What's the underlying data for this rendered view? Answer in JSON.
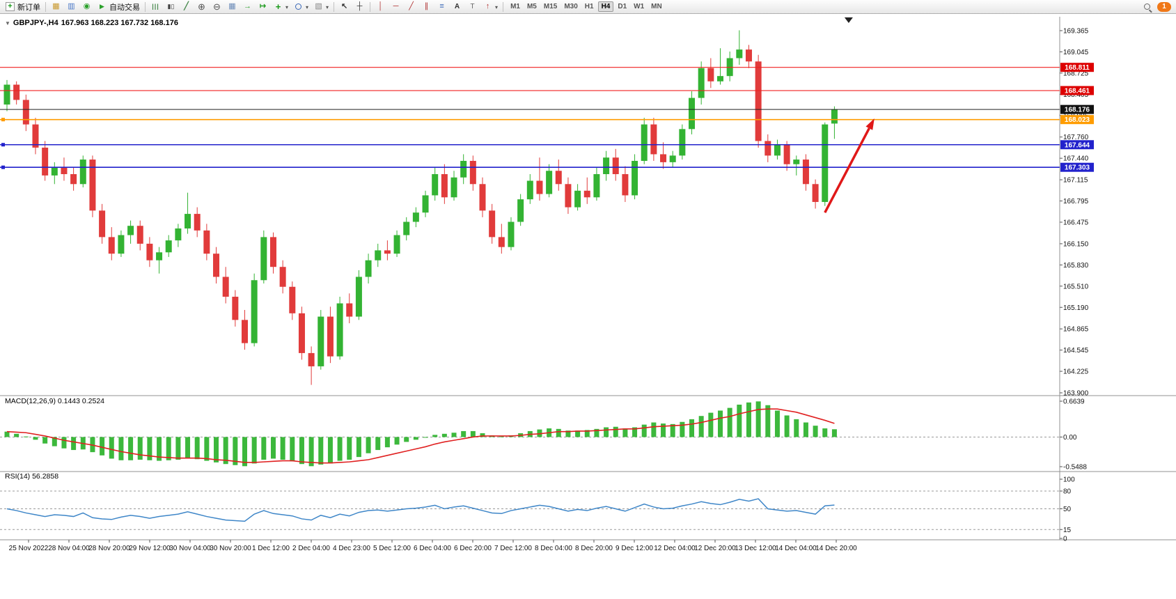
{
  "toolbar": {
    "new_order_label": "新订单",
    "auto_trading_label": "自动交易",
    "timeframes": [
      "M1",
      "M5",
      "M15",
      "M30",
      "H1",
      "H4",
      "D1",
      "W1",
      "MN"
    ],
    "active_timeframe": "H4",
    "notification_count": "1",
    "icons": {
      "new-order-icon": "document-plus",
      "charts-icon": "grid-gold",
      "market-watch-icon": "panel-blue",
      "navigator-icon": "circle-green",
      "auto-trading-icon": "play-green",
      "bar-chart-type-icon": "ohlc-bars",
      "candlestick-type-icon": "candles",
      "line-chart-type-icon": "diagonal-line",
      "zoom-in-icon": "circled-plus",
      "zoom-out-icon": "circled-minus",
      "tile-windows-icon": "grid",
      "auto-scroll-icon": "arrow-right-green",
      "chart-shift-icon": "arrow-bar-green",
      "indicators-icon": "plus-green",
      "periods-icon": "clock-blue",
      "templates-icon": "hatched-square",
      "cursor-icon": "arrow-up-left",
      "crosshair-icon": "cross",
      "vertical-line-icon": "vertical-bar-red",
      "horizontal-line-icon": "horizontal-bar-red",
      "trendline-icon": "diagonal-red",
      "channel-icon": "parallel-red",
      "fibonacci-icon": "triple-bar-blue",
      "text-icon": "letter-A",
      "text-label-icon": "letter-T",
      "arrows-icon": "arrow-up-red",
      "search-icon": "magnifier",
      "notification-badge": "orange-circle"
    }
  },
  "chart_data": [
    {
      "type": "candlestick",
      "symbol_period": "GBPJPY-,H4",
      "ohlc_text": "167.963 168.223 167.732 168.176",
      "last_candle": {
        "open": 167.963,
        "high": 168.223,
        "low": 167.732,
        "close": 168.176
      },
      "up_color": "#33b333",
      "down_color": "#e13b3b",
      "ylim": [
        163.9,
        169.365
      ],
      "y_tick_labels": [
        "169.365",
        "169.045",
        "168.725",
        "168.405",
        "168.085",
        "167.760",
        "167.440",
        "167.115",
        "166.795",
        "166.475",
        "166.150",
        "165.830",
        "165.510",
        "165.190",
        "164.865",
        "164.545",
        "164.225",
        "163.900"
      ],
      "x_labels": [
        "25 Nov 2022",
        "28 Nov 04:00",
        "28 Nov 20:00",
        "29 Nov 12:00",
        "30 Nov 04:00",
        "30 Nov 20:00",
        "1 Dec 12:00",
        "2 Dec 04:00",
        "4 Dec 23:00",
        "5 Dec 12:00",
        "6 Dec 04:00",
        "6 Dec 20:00",
        "7 Dec 12:00",
        "8 Dec 04:00",
        "8 Dec 20:00",
        "9 Dec 12:00",
        "12 Dec 04:00",
        "12 Dec 20:00",
        "13 Dec 12:00",
        "14 Dec 04:00",
        "14 Dec 20:00"
      ],
      "hlines": [
        {
          "price": 168.811,
          "label": "168.811",
          "color": "#f02020",
          "box": "#dd0000",
          "width": 1.1,
          "handle": false
        },
        {
          "price": 168.461,
          "label": "168.461",
          "color": "#f02020",
          "box": "#dd0000",
          "width": 1.1,
          "handle": false
        },
        {
          "price": 168.176,
          "label": "168.176",
          "color": "#222222",
          "box": "#111111",
          "width": 1.1,
          "handle": false
        },
        {
          "price": 168.023,
          "label": "168.023",
          "color": "#ff9c00",
          "box": "#ff9c00",
          "width": 1.6,
          "handle": true
        },
        {
          "price": 167.644,
          "label": "167.644",
          "color": "#2222cc",
          "box": "#2222cc",
          "width": 1.6,
          "handle": true
        },
        {
          "price": 167.303,
          "label": "167.303",
          "color": "#2222cc",
          "box": "#2222cc",
          "width": 1.6,
          "handle": true
        }
      ],
      "arrow_annotation": {
        "from": [
          86.0,
          166.62
        ],
        "to": [
          91.2,
          168.04
        ],
        "color": "#e01818"
      },
      "shift_marker_index": 88.5,
      "candles": [
        [
          168.25,
          168.62,
          168.15,
          168.55
        ],
        [
          168.55,
          168.6,
          168.25,
          168.32
        ],
        [
          168.32,
          168.4,
          167.85,
          167.95
        ],
        [
          167.95,
          168.05,
          167.5,
          167.6
        ],
        [
          167.6,
          167.7,
          167.1,
          167.18
        ],
        [
          167.18,
          167.38,
          167.05,
          167.3
        ],
        [
          167.3,
          167.45,
          167.1,
          167.2
        ],
        [
          167.2,
          167.3,
          166.95,
          167.05
        ],
        [
          167.05,
          167.48,
          167.0,
          167.42
        ],
        [
          167.42,
          167.48,
          166.55,
          166.65
        ],
        [
          166.65,
          166.75,
          166.15,
          166.25
        ],
        [
          166.25,
          166.4,
          165.9,
          166.0
        ],
        [
          166.0,
          166.35,
          165.95,
          166.28
        ],
        [
          166.28,
          166.5,
          166.15,
          166.42
        ],
        [
          166.42,
          166.5,
          166.05,
          166.15
        ],
        [
          166.15,
          166.25,
          165.8,
          165.9
        ],
        [
          165.9,
          166.1,
          165.7,
          166.02
        ],
        [
          166.02,
          166.28,
          165.95,
          166.2
        ],
        [
          166.2,
          166.45,
          166.1,
          166.38
        ],
        [
          166.38,
          166.92,
          166.3,
          166.6
        ],
        [
          166.6,
          166.7,
          166.25,
          166.35
        ],
        [
          166.35,
          166.45,
          165.9,
          166.0
        ],
        [
          166.0,
          166.1,
          165.55,
          165.65
        ],
        [
          165.65,
          165.8,
          165.25,
          165.35
        ],
        [
          165.35,
          165.45,
          164.9,
          165.0
        ],
        [
          165.0,
          165.15,
          164.55,
          164.65
        ],
        [
          164.65,
          165.7,
          164.6,
          165.6
        ],
        [
          165.6,
          166.35,
          165.55,
          166.25
        ],
        [
          166.25,
          166.32,
          165.7,
          165.8
        ],
        [
          165.8,
          165.9,
          165.4,
          165.5
        ],
        [
          165.5,
          165.58,
          165.0,
          165.1
        ],
        [
          165.1,
          165.2,
          164.4,
          164.5
        ],
        [
          164.5,
          164.6,
          164.02,
          164.3
        ],
        [
          164.3,
          165.15,
          164.25,
          165.05
        ],
        [
          165.05,
          165.2,
          164.35,
          164.45
        ],
        [
          164.45,
          165.35,
          164.4,
          165.25
        ],
        [
          165.25,
          165.4,
          164.95,
          165.05
        ],
        [
          165.05,
          165.75,
          165.0,
          165.65
        ],
        [
          165.65,
          166.0,
          165.55,
          165.9
        ],
        [
          165.9,
          166.15,
          165.8,
          166.05
        ],
        [
          166.05,
          166.2,
          165.9,
          166.0
        ],
        [
          166.0,
          166.35,
          165.95,
          166.28
        ],
        [
          166.28,
          166.55,
          166.2,
          166.48
        ],
        [
          166.48,
          166.7,
          166.4,
          166.62
        ],
        [
          166.62,
          166.95,
          166.55,
          166.88
        ],
        [
          166.88,
          167.3,
          166.8,
          167.2
        ],
        [
          167.2,
          167.35,
          166.75,
          166.85
        ],
        [
          166.85,
          167.25,
          166.8,
          167.15
        ],
        [
          167.15,
          167.5,
          167.05,
          167.4
        ],
        [
          167.4,
          167.48,
          166.95,
          167.05
        ],
        [
          167.05,
          167.15,
          166.55,
          166.65
        ],
        [
          166.65,
          166.75,
          166.15,
          166.25
        ],
        [
          166.25,
          166.45,
          166.0,
          166.1
        ],
        [
          166.1,
          166.55,
          166.05,
          166.48
        ],
        [
          166.48,
          166.9,
          166.42,
          166.82
        ],
        [
          166.82,
          167.2,
          166.75,
          167.1
        ],
        [
          167.1,
          167.45,
          166.8,
          166.9
        ],
        [
          166.9,
          167.35,
          166.85,
          167.25
        ],
        [
          167.25,
          167.42,
          166.95,
          167.05
        ],
        [
          167.05,
          167.15,
          166.6,
          166.7
        ],
        [
          166.7,
          167.05,
          166.65,
          166.95
        ],
        [
          166.95,
          167.15,
          166.75,
          166.85
        ],
        [
          166.85,
          167.3,
          166.8,
          167.2
        ],
        [
          167.2,
          167.55,
          167.1,
          167.45
        ],
        [
          167.45,
          167.58,
          167.1,
          167.2
        ],
        [
          167.2,
          167.32,
          166.78,
          166.88
        ],
        [
          166.88,
          167.5,
          166.82,
          167.4
        ],
        [
          167.4,
          168.05,
          167.35,
          167.95
        ],
        [
          167.95,
          168.05,
          167.4,
          167.5
        ],
        [
          167.5,
          167.68,
          167.28,
          167.38
        ],
        [
          167.38,
          167.55,
          167.3,
          167.48
        ],
        [
          167.48,
          167.95,
          167.42,
          167.88
        ],
        [
          167.88,
          168.45,
          167.8,
          168.35
        ],
        [
          168.35,
          168.9,
          168.25,
          168.8
        ],
        [
          168.8,
          168.95,
          168.5,
          168.6
        ],
        [
          168.6,
          169.1,
          168.55,
          168.68
        ],
        [
          168.68,
          169.05,
          168.6,
          168.95
        ],
        [
          168.95,
          169.37,
          168.85,
          169.08
        ],
        [
          169.08,
          169.15,
          168.8,
          168.9
        ],
        [
          168.9,
          169.0,
          167.6,
          167.7
        ],
        [
          167.7,
          167.8,
          167.38,
          167.48
        ],
        [
          167.48,
          167.72,
          167.42,
          167.65
        ],
        [
          167.65,
          167.7,
          167.25,
          167.35
        ],
        [
          167.35,
          167.48,
          167.18,
          167.42
        ],
        [
          167.42,
          167.5,
          166.95,
          167.05
        ],
        [
          167.05,
          167.12,
          166.68,
          166.78
        ],
        [
          166.78,
          167.98,
          166.72,
          167.95
        ],
        [
          167.963,
          168.223,
          167.732,
          168.176
        ]
      ]
    },
    {
      "type": "bar",
      "title": "MACD(12,26,9)",
      "label": "MACD(12,26,9) 0.1443 0.2524",
      "current_main": 0.1443,
      "current_signal": 0.2524,
      "histogram_color": "#3cb83c",
      "signal_color": "#e02020",
      "y_tick_labels": [
        "0.6639",
        "0.00",
        "-0.5488"
      ],
      "histogram": [
        0.1,
        0.06,
        0.01,
        -0.05,
        -0.12,
        -0.17,
        -0.21,
        -0.24,
        -0.23,
        -0.28,
        -0.34,
        -0.4,
        -0.43,
        -0.43,
        -0.42,
        -0.43,
        -0.44,
        -0.43,
        -0.42,
        -0.4,
        -0.41,
        -0.44,
        -0.47,
        -0.5,
        -0.52,
        -0.54,
        -0.49,
        -0.42,
        -0.4,
        -0.42,
        -0.45,
        -0.5,
        -0.54,
        -0.51,
        -0.49,
        -0.44,
        -0.42,
        -0.37,
        -0.3,
        -0.24,
        -0.19,
        -0.14,
        -0.09,
        -0.05,
        -0.01,
        0.04,
        0.06,
        0.08,
        0.11,
        0.11,
        0.07,
        0.03,
        0.01,
        0.03,
        0.07,
        0.11,
        0.14,
        0.16,
        0.15,
        0.12,
        0.12,
        0.13,
        0.15,
        0.18,
        0.19,
        0.16,
        0.18,
        0.23,
        0.27,
        0.25,
        0.24,
        0.28,
        0.33,
        0.39,
        0.45,
        0.49,
        0.54,
        0.6,
        0.64,
        0.66,
        0.59,
        0.49,
        0.4,
        0.33,
        0.27,
        0.21,
        0.16,
        0.1443
      ],
      "signal": [
        0.1,
        0.09,
        0.08,
        0.05,
        0.02,
        -0.02,
        -0.06,
        -0.09,
        -0.12,
        -0.15,
        -0.19,
        -0.23,
        -0.27,
        -0.3,
        -0.33,
        -0.35,
        -0.37,
        -0.38,
        -0.39,
        -0.39,
        -0.39,
        -0.4,
        -0.42,
        -0.43,
        -0.45,
        -0.47,
        -0.47,
        -0.46,
        -0.45,
        -0.44,
        -0.44,
        -0.46,
        -0.47,
        -0.48,
        -0.48,
        -0.47,
        -0.46,
        -0.44,
        -0.42,
        -0.38,
        -0.34,
        -0.3,
        -0.26,
        -0.22,
        -0.18,
        -0.13,
        -0.09,
        -0.06,
        -0.03,
        0.0,
        0.02,
        0.02,
        0.02,
        0.02,
        0.03,
        0.05,
        0.06,
        0.08,
        0.1,
        0.1,
        0.11,
        0.11,
        0.12,
        0.13,
        0.14,
        0.15,
        0.15,
        0.17,
        0.19,
        0.2,
        0.21,
        0.22,
        0.24,
        0.27,
        0.31,
        0.35,
        0.38,
        0.43,
        0.47,
        0.51,
        0.52,
        0.52,
        0.49,
        0.46,
        0.41,
        0.36,
        0.31,
        0.2524
      ]
    },
    {
      "type": "line",
      "title": "RSI(14)",
      "label": "RSI(14) 56.2858",
      "current": 56.2858,
      "line_color": "#3e86c8",
      "levels": [
        80,
        50,
        15
      ],
      "y_tick_labels": [
        "100",
        "80",
        "50",
        "15",
        "0"
      ],
      "ylim": [
        0,
        100
      ],
      "values": [
        50,
        47,
        43,
        40,
        37,
        40,
        39,
        37,
        43,
        35,
        33,
        32,
        36,
        39,
        37,
        34,
        37,
        39,
        41,
        45,
        41,
        37,
        34,
        31,
        30,
        29,
        41,
        47,
        42,
        40,
        38,
        33,
        31,
        39,
        35,
        41,
        38,
        44,
        47,
        48,
        46,
        48,
        50,
        51,
        53,
        56,
        50,
        53,
        55,
        51,
        47,
        43,
        42,
        47,
        50,
        53,
        56,
        54,
        50,
        46,
        49,
        47,
        51,
        54,
        50,
        46,
        52,
        58,
        53,
        50,
        51,
        55,
        58,
        62,
        59,
        57,
        61,
        66,
        63,
        67,
        50,
        48,
        46,
        47,
        44,
        41,
        55,
        56.2858
      ]
    }
  ]
}
